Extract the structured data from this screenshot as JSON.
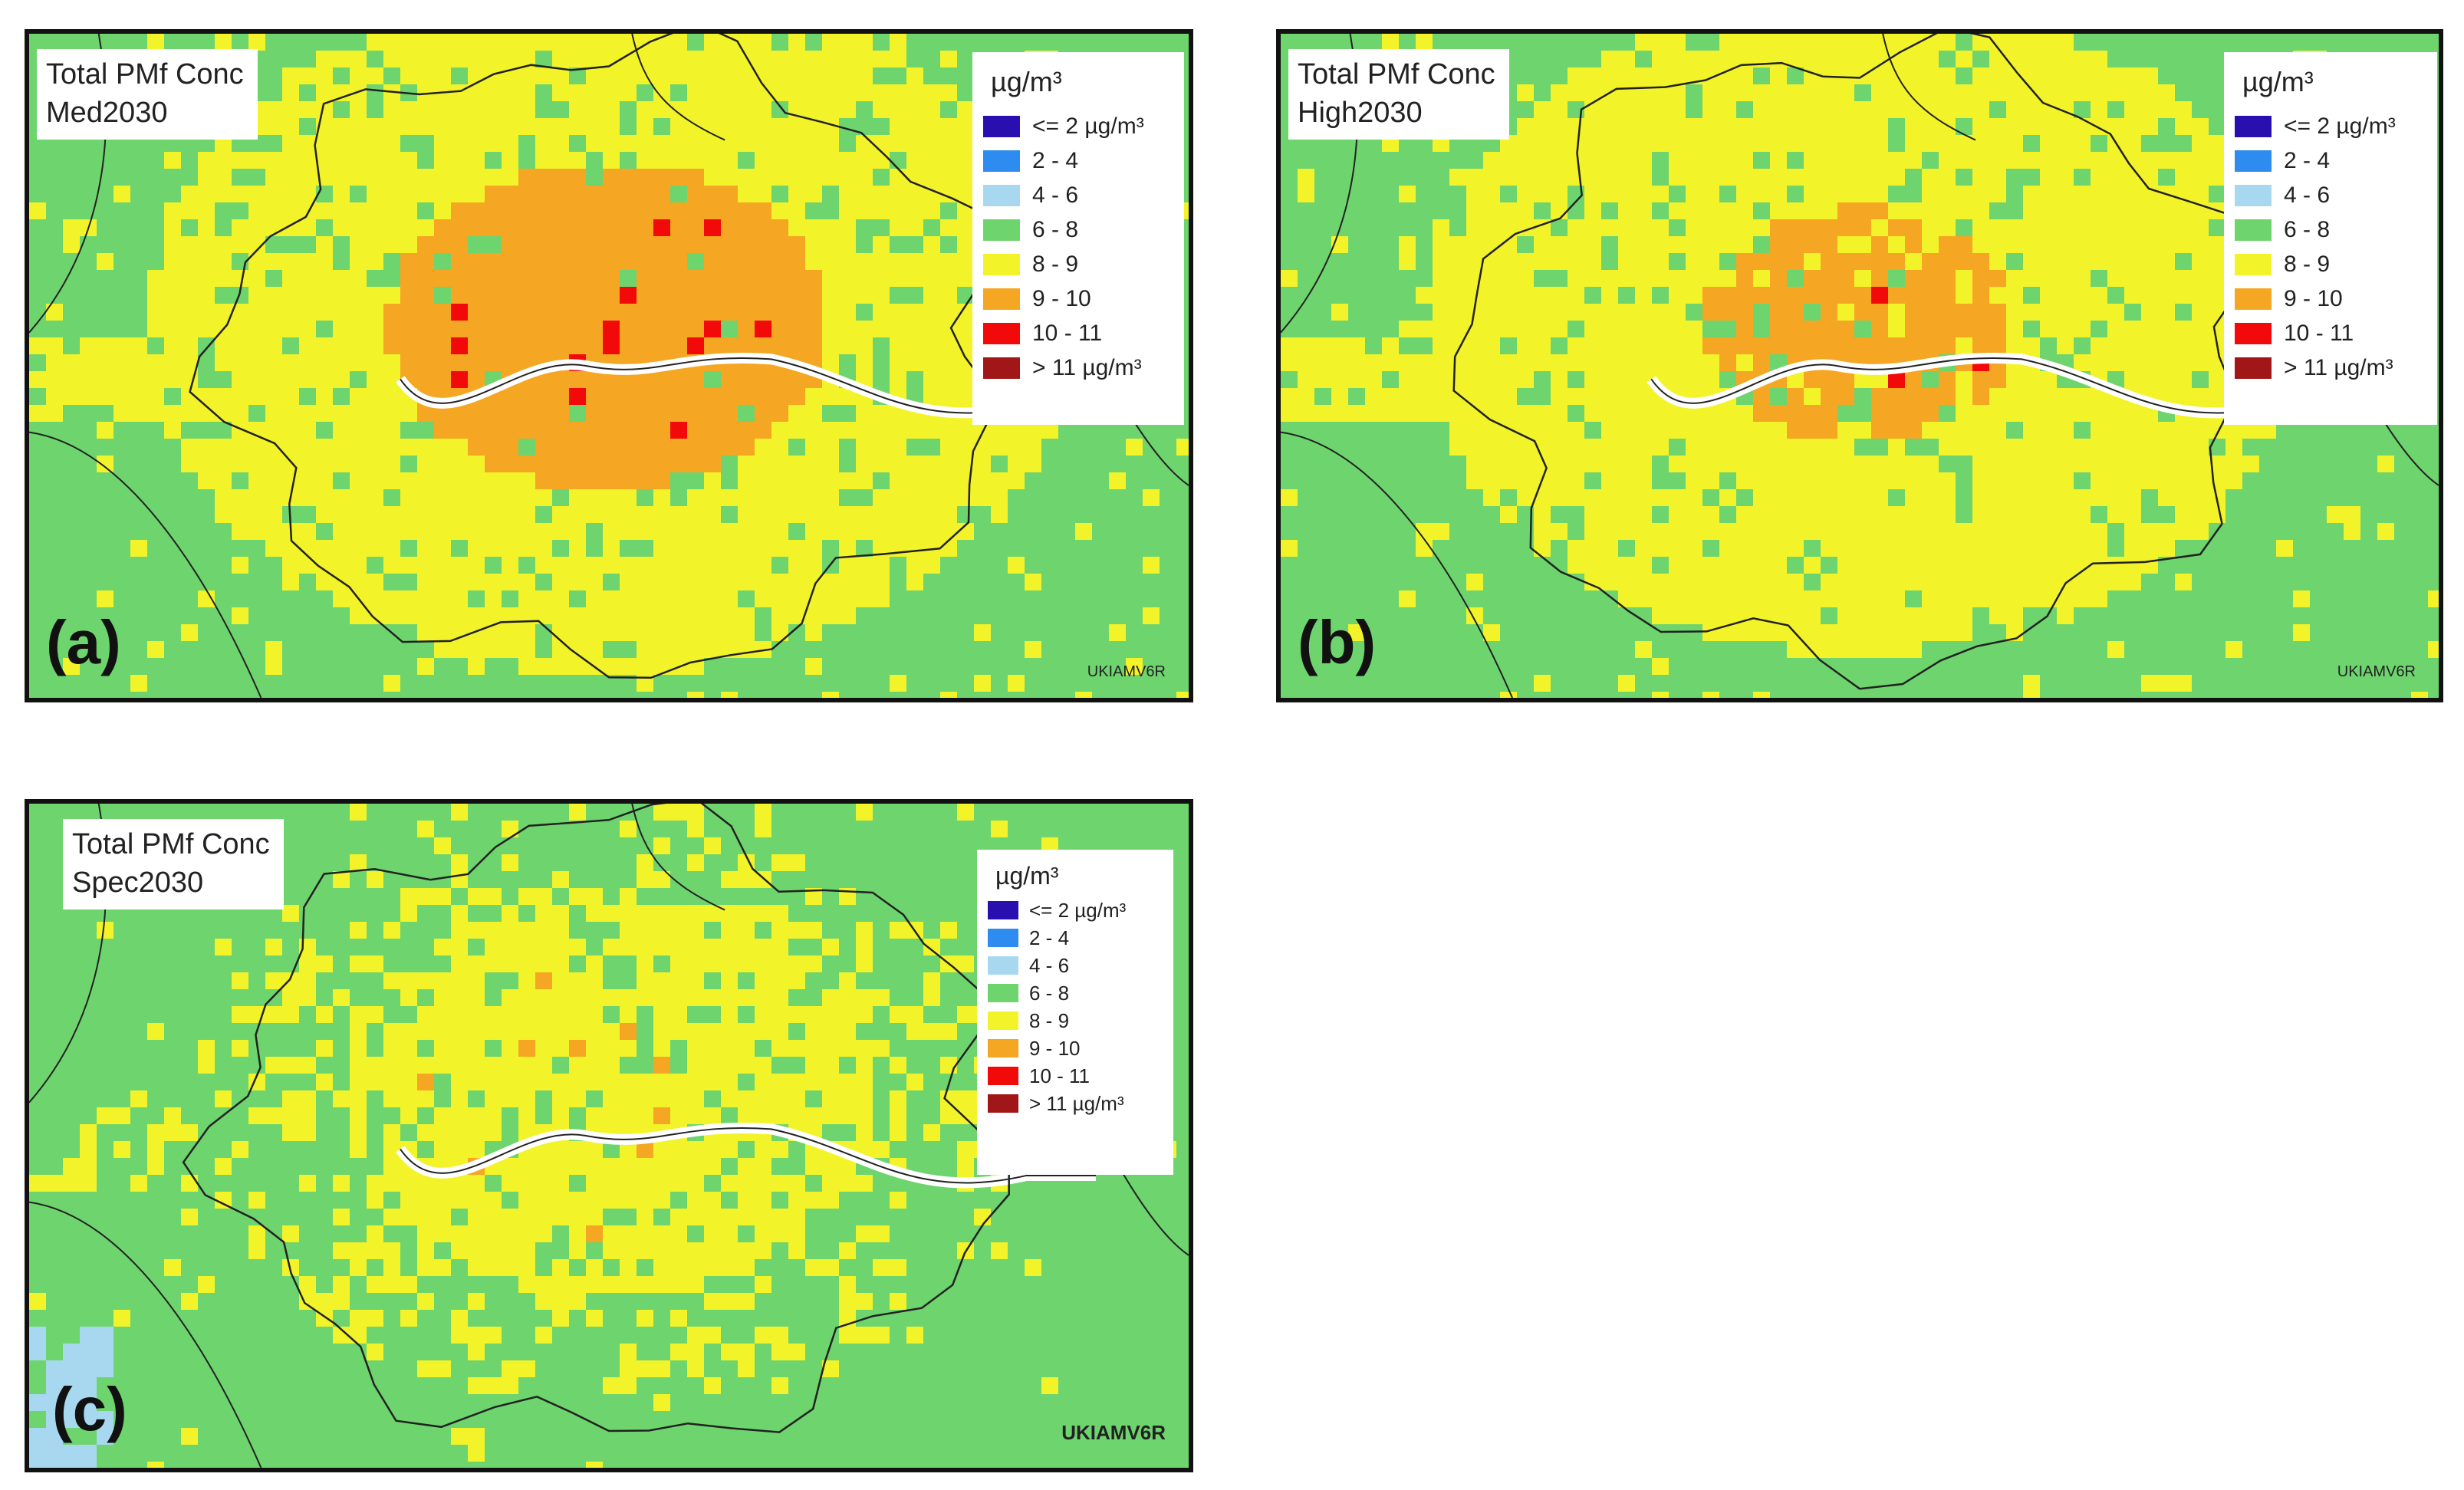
{
  "colors": {
    "bg": "#6ed46e",
    "band_8_9": "#f3f32a",
    "band_9_10": "#f5a623",
    "band_10_11": "#f20a0a",
    "band_gt_11": "#a11616",
    "band_4_6": "#a8d8f0",
    "river": "#ffffff",
    "border": "#222222"
  },
  "legend": {
    "unit": "µg/m³",
    "items": [
      {
        "label": "<= 2 µg/m³",
        "color": "#2a0fb0"
      },
      {
        "label": "2 - 4",
        "color": "#2e8cf0"
      },
      {
        "label": "4 - 6",
        "color": "#a8d8f0"
      },
      {
        "label": "6 - 8",
        "color": "#6ed46e"
      },
      {
        "label": "8 - 9",
        "color": "#f3f32a"
      },
      {
        "label": "9 - 10",
        "color": "#f5a623"
      },
      {
        "label": "10 - 11",
        "color": "#f20a0a"
      },
      {
        "label": "> 11 µg/m³",
        "color": "#a11616"
      }
    ]
  },
  "panels": [
    {
      "id": "a",
      "title_line1": "Total PMf Conc",
      "title_line2": "Med2030",
      "letter": "(a)",
      "source": "UKIAMV6R"
    },
    {
      "id": "b",
      "title_line1": "Total PMf Conc",
      "title_line2": "High2030",
      "letter": "(b)",
      "source": "UKIAMV6R"
    },
    {
      "id": "c",
      "title_line1": "Total PMf Conc",
      "title_line2": "Spec2030",
      "letter": "(c)",
      "source": "UKIAMV6R"
    }
  ]
}
